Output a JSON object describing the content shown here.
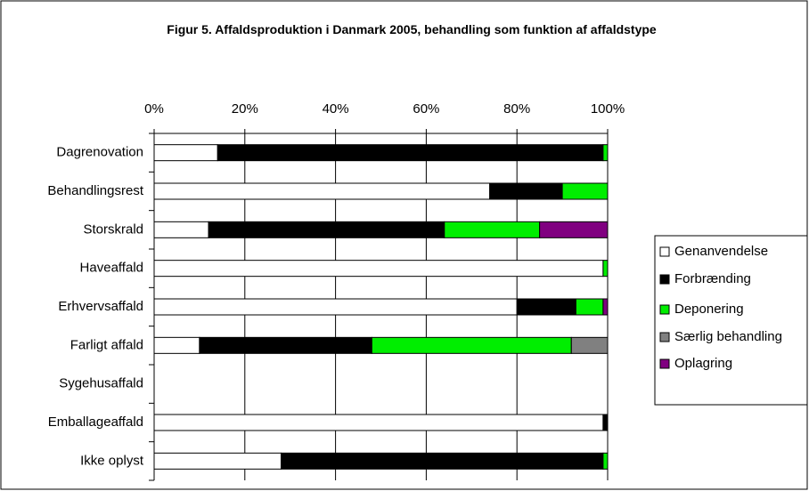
{
  "chart_data": {
    "type": "stacked_bar_horizontal",
    "title": "Figur 5. Affaldsproduktion i Danmark 2005, behandling som funktion af affaldstype",
    "categories": [
      "Dagrenovation",
      "Behandlingsrest",
      "Storskrald",
      "Haveaffald",
      "Erhvervsaffald",
      "Farligt affald",
      "Sygehusaffald",
      "Emballageaffald",
      "Ikke oplyst"
    ],
    "series": [
      {
        "name": "Genanvendelse",
        "color": "#ffffff",
        "values": [
          14,
          74,
          12,
          99,
          80,
          10,
          null,
          99,
          28
        ]
      },
      {
        "name": "Forbrænding",
        "color": "#000000",
        "values": [
          85,
          16,
          52,
          0,
          13,
          38,
          null,
          1,
          71
        ]
      },
      {
        "name": "Deponering",
        "color": "#00ee00",
        "values": [
          1,
          10,
          21,
          1,
          6,
          44,
          null,
          0,
          1
        ]
      },
      {
        "name": "Særlig behandling",
        "color": "#808080",
        "values": [
          0,
          0,
          0,
          0,
          0,
          8,
          null,
          0,
          0
        ]
      },
      {
        "name": "Oplagring",
        "color": "#800080",
        "values": [
          0,
          0,
          15,
          0,
          1,
          0,
          null,
          0,
          0
        ]
      }
    ],
    "xlim": [
      0,
      100
    ],
    "xticks": [
      {
        "value": 0,
        "label": "0%"
      },
      {
        "value": 20,
        "label": "20%"
      },
      {
        "value": 40,
        "label": "40%"
      },
      {
        "value": 60,
        "label": "60%"
      },
      {
        "value": 80,
        "label": "80%"
      },
      {
        "value": 100,
        "label": "100%"
      }
    ],
    "grid": true,
    "legend": "right"
  }
}
